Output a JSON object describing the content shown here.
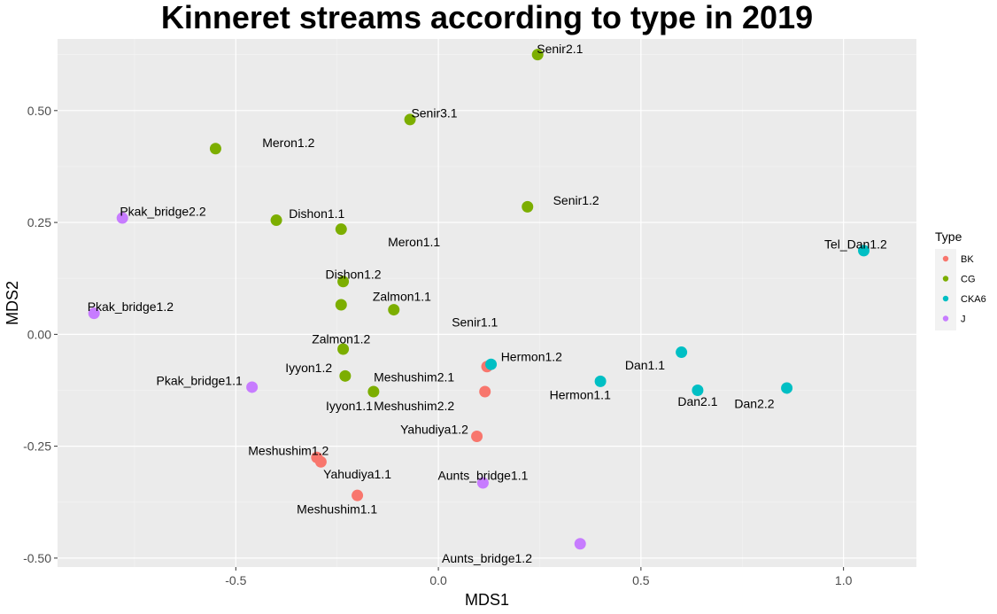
{
  "chart_data": {
    "type": "scatter",
    "title": "Kinneret streams according to type in 2019",
    "xlabel": "MDS1",
    "ylabel": "MDS2",
    "xlim": [
      -0.94,
      1.18
    ],
    "ylim": [
      -0.52,
      0.66
    ],
    "xticks": [
      -0.5,
      0.0,
      0.5,
      1.0
    ],
    "xtick_labels": [
      "-0.5",
      "0.0",
      "0.5",
      "1.0"
    ],
    "yticks": [
      -0.5,
      -0.25,
      0.0,
      0.25,
      0.5
    ],
    "ytick_labels": [
      "-0.50",
      "-0.25",
      "0.00",
      "0.25",
      "0.50"
    ],
    "grid": true,
    "legend": {
      "title": "Type",
      "position": "right",
      "entries": [
        {
          "name": "BK",
          "color": "#F8766D"
        },
        {
          "name": "CG",
          "color": "#7CAE00"
        },
        {
          "name": "CKA6",
          "color": "#00BFC4"
        },
        {
          "name": "J",
          "color": "#C77CFF"
        }
      ]
    },
    "points": [
      {
        "x": 0.245,
        "y": 0.625,
        "type": "CG"
      },
      {
        "x": -0.07,
        "y": 0.48,
        "type": "CG"
      },
      {
        "x": -0.55,
        "y": 0.415,
        "type": "CG"
      },
      {
        "x": 0.22,
        "y": 0.285,
        "type": "CG"
      },
      {
        "x": -0.4,
        "y": 0.255,
        "type": "CG"
      },
      {
        "x": -0.24,
        "y": 0.235,
        "type": "CG"
      },
      {
        "x": -0.235,
        "y": 0.118,
        "type": "CG"
      },
      {
        "x": -0.24,
        "y": 0.066,
        "type": "CG"
      },
      {
        "x": -0.11,
        "y": 0.055,
        "type": "CG"
      },
      {
        "x": -0.235,
        "y": -0.033,
        "type": "CG"
      },
      {
        "x": -0.23,
        "y": -0.093,
        "type": "CG"
      },
      {
        "x": -0.16,
        "y": -0.128,
        "type": "CG"
      },
      {
        "x": 0.12,
        "y": -0.072,
        "type": "BK"
      },
      {
        "x": 0.115,
        "y": -0.128,
        "type": "BK"
      },
      {
        "x": 0.095,
        "y": -0.228,
        "type": "BK"
      },
      {
        "x": -0.3,
        "y": -0.275,
        "type": "BK"
      },
      {
        "x": -0.29,
        "y": -0.285,
        "type": "BK"
      },
      {
        "x": -0.2,
        "y": -0.36,
        "type": "BK"
      },
      {
        "x": 0.13,
        "y": -0.067,
        "type": "CKA6"
      },
      {
        "x": 1.05,
        "y": 0.187,
        "type": "CKA6"
      },
      {
        "x": 0.6,
        "y": -0.04,
        "type": "CKA6"
      },
      {
        "x": 0.4,
        "y": -0.105,
        "type": "CKA6"
      },
      {
        "x": 0.64,
        "y": -0.125,
        "type": "CKA6"
      },
      {
        "x": 0.86,
        "y": -0.12,
        "type": "CKA6"
      },
      {
        "x": -0.78,
        "y": 0.26,
        "type": "J"
      },
      {
        "x": -0.85,
        "y": 0.047,
        "type": "J"
      },
      {
        "x": -0.46,
        "y": -0.118,
        "type": "J"
      },
      {
        "x": 0.11,
        "y": -0.332,
        "type": "J"
      },
      {
        "x": 0.35,
        "y": -0.468,
        "type": "J"
      }
    ],
    "labels": [
      {
        "text": "Senir2.1",
        "x": 0.3,
        "y": 0.638
      },
      {
        "text": "Senir3.1",
        "x": -0.01,
        "y": 0.495
      },
      {
        "text": "Meron1.2",
        "x": -0.37,
        "y": 0.428
      },
      {
        "text": "Senir1.2",
        "x": 0.34,
        "y": 0.3
      },
      {
        "text": "Pkak_bridge2.2",
        "x": -0.68,
        "y": 0.275
      },
      {
        "text": "Dishon1.1",
        "x": -0.3,
        "y": 0.27
      },
      {
        "text": "Meron1.1",
        "x": -0.06,
        "y": 0.207
      },
      {
        "text": "Tel_Dan1.2",
        "x": 1.03,
        "y": 0.202
      },
      {
        "text": "Dishon1.2",
        "x": -0.21,
        "y": 0.134
      },
      {
        "text": "Zalmon1.1",
        "x": -0.09,
        "y": 0.085
      },
      {
        "text": "Pkak_bridge1.2",
        "x": -0.76,
        "y": 0.062
      },
      {
        "text": "Senir1.1",
        "x": 0.09,
        "y": 0.027
      },
      {
        "text": "Zalmon1.2",
        "x": -0.24,
        "y": -0.01
      },
      {
        "text": "Hermon1.2",
        "x": 0.23,
        "y": -0.05
      },
      {
        "text": "Dan1.1",
        "x": 0.51,
        "y": -0.069
      },
      {
        "text": "Iyyon1.2",
        "x": -0.32,
        "y": -0.075
      },
      {
        "text": "Meshushim2.1",
        "x": -0.06,
        "y": -0.095
      },
      {
        "text": "Pkak_bridge1.1",
        "x": -0.59,
        "y": -0.103
      },
      {
        "text": "Hermon1.1",
        "x": 0.35,
        "y": -0.135
      },
      {
        "text": "Meshushim2.2",
        "x": -0.06,
        "y": -0.16
      },
      {
        "text": "Iyyon1.1",
        "x": -0.22,
        "y": -0.16
      },
      {
        "text": "Dan2.1",
        "x": 0.64,
        "y": -0.15
      },
      {
        "text": "Dan2.2",
        "x": 0.78,
        "y": -0.155
      },
      {
        "text": "Yahudiya1.2",
        "x": -0.01,
        "y": -0.212
      },
      {
        "text": "Meshushim1.2",
        "x": -0.37,
        "y": -0.26
      },
      {
        "text": "Yahudiya1.1",
        "x": -0.2,
        "y": -0.312
      },
      {
        "text": "Aunts_bridge1.1",
        "x": 0.11,
        "y": -0.315
      },
      {
        "text": "Meshushim1.1",
        "x": -0.25,
        "y": -0.39
      },
      {
        "text": "Aunts_bridge1.2",
        "x": 0.12,
        "y": -0.5
      }
    ]
  }
}
